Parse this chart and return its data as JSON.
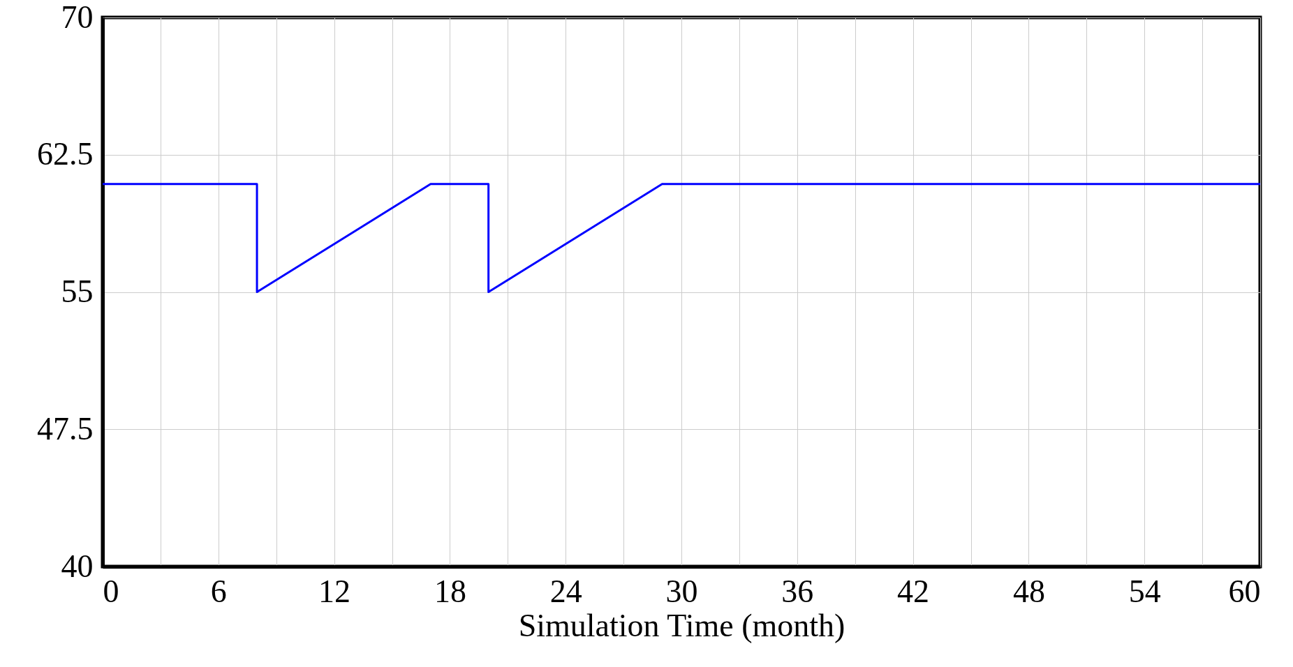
{
  "chart_data": {
    "type": "line",
    "xlabel": "Simulation Time (month)",
    "x": [
      0,
      8,
      8,
      17,
      20,
      20,
      29,
      60
    ],
    "series": [
      {
        "color": "#0000ff",
        "values": [
          60.9,
          60.9,
          55,
          60.9,
          60.9,
          55,
          60.9,
          60.9
        ]
      }
    ],
    "xlim": [
      0,
      60
    ],
    "xticks": [
      0,
      {
        "value": 3,
        "label": null
      },
      6,
      {
        "value": 9,
        "label": null
      },
      12,
      {
        "value": 15,
        "label": null
      },
      18,
      {
        "value": 21,
        "label": null
      },
      24,
      {
        "value": 27,
        "label": null
      },
      30,
      {
        "value": 33,
        "label": null
      },
      36,
      {
        "value": 39,
        "label": null
      },
      42,
      {
        "value": 45,
        "label": null
      },
      48,
      {
        "value": 51,
        "label": null
      },
      54,
      {
        "value": 57,
        "label": null
      },
      60
    ],
    "ylim": [
      40,
      70
    ],
    "yticks": [
      40,
      47.5,
      55,
      62.5,
      70
    ],
    "grid": true
  }
}
